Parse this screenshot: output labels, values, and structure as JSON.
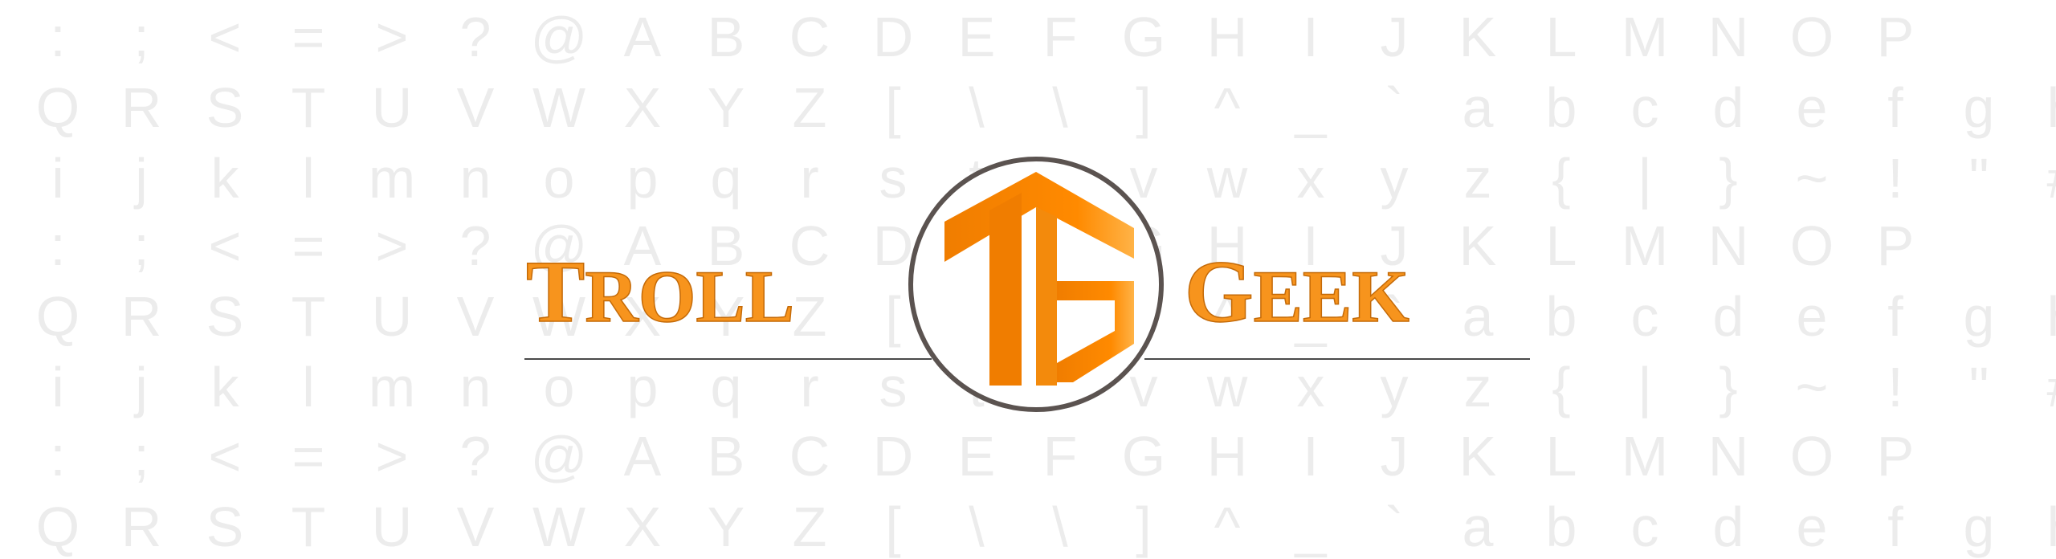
{
  "background": {
    "rows": [
      ":;<=>?@ABCDEFGHIJKLMNOP",
      "QRSTUVWXYZ[\\\\]^_`abcdefgh",
      "ijklmnopqrstuvwxyz{|}~!\"#$",
      ":;<=>?@ABCDEFGHIJKLMNOP",
      "QRSTUVWXYZ[\\\\]^_`abcdefgh",
      "ijklmnopqrstuvwxyz{|}~!\"#$%",
      ":;<=>?@ABCDEFGHIJKLMNOP",
      "QRSTUVWXYZ[\\\\]^_`abcdefgh"
    ],
    "color": "#ececec"
  },
  "logo": {
    "word_left_initial": "T",
    "word_left_rest": "ROLL",
    "word_right_initial": "G",
    "word_right_rest": "EEK",
    "emblem_icon": "tg-monogram-icon",
    "colors": {
      "orange": "#f7941d",
      "orange_dark": "#f07d00",
      "orange_light": "#ffb347",
      "ring": "#5b5350",
      "rule": "#4a4a4a"
    }
  }
}
